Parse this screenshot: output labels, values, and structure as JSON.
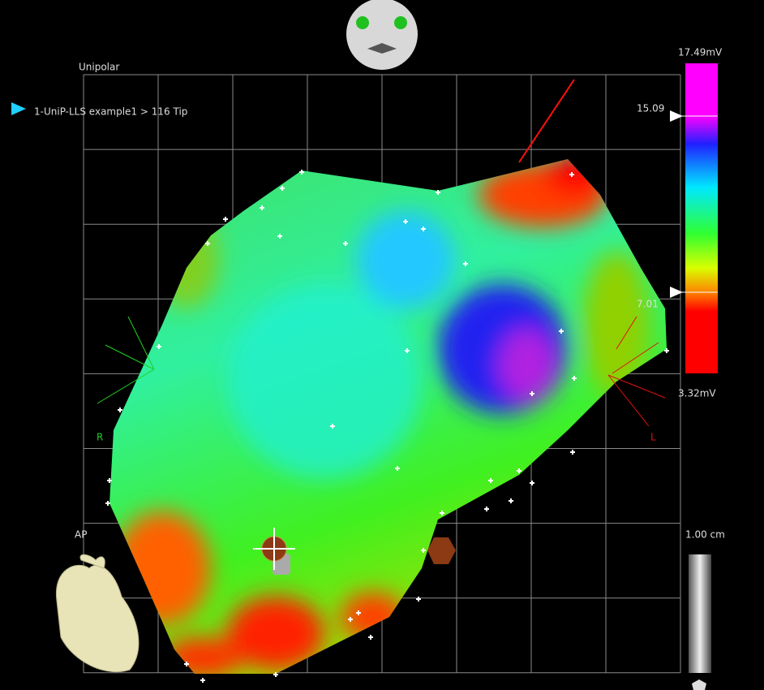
{
  "view": {
    "mode": "Unipolar",
    "point": "1-UniP-LLS example1 > 116 Tip",
    "orientation": "AP",
    "left_marker": "R",
    "right_marker": "L"
  },
  "color_scale": {
    "max": "17.49mV",
    "upper": "15.09",
    "lower": "7.01",
    "min": "3.32mV"
  },
  "scale_bar": {
    "label": "1.00 cm"
  }
}
